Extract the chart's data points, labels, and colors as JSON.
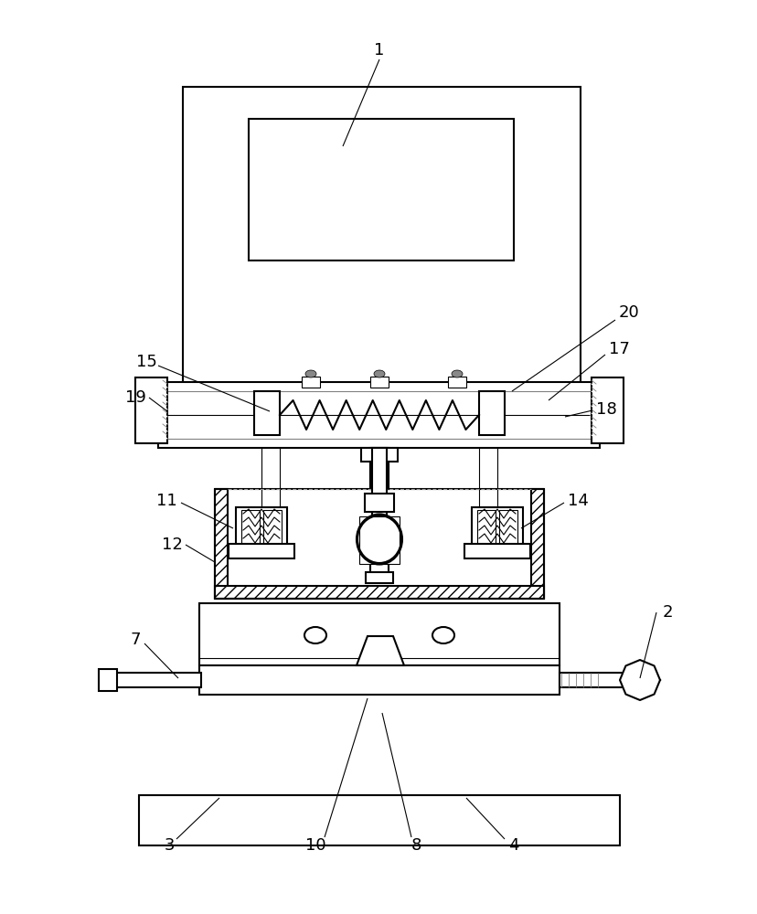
{
  "bg_color": "#ffffff",
  "lc": "#000000",
  "lw": 1.5,
  "lw_t": 0.8,
  "fig_w": 8.29,
  "fig_h": 10.0
}
